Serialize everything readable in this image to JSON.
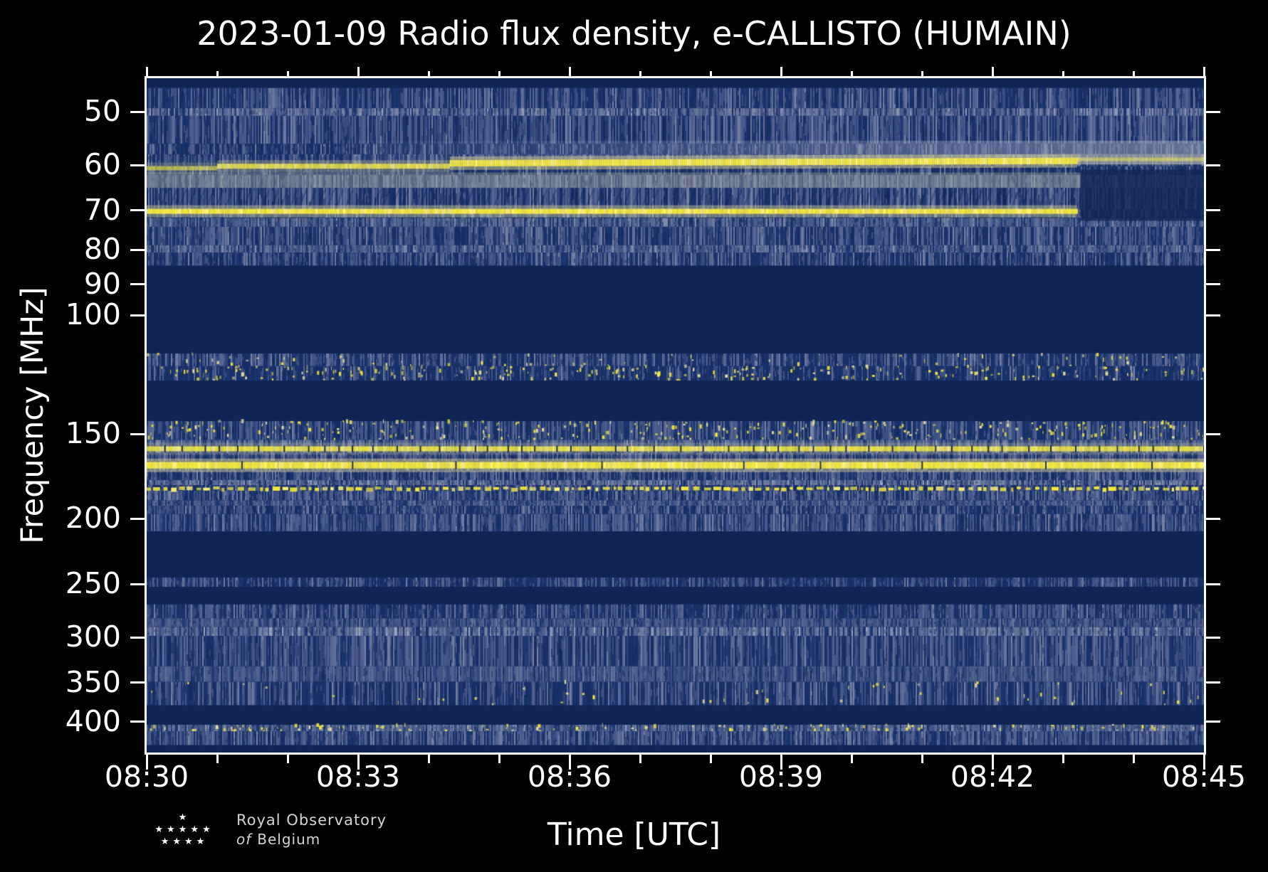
{
  "title": "2023-01-09 Radio flux density, e-CALLISTO (HUMAIN)",
  "x_axis": {
    "label": "Time [UTC]",
    "tick_labels": [
      "08:30",
      "08:33",
      "08:36",
      "08:39",
      "08:42",
      "08:45"
    ],
    "duration_min": 15,
    "major_step_min": 3,
    "minor_step_min": 1
  },
  "y_axis": {
    "label": "Frequency [MHz]",
    "scale": "log",
    "tick_labels": [
      50,
      60,
      70,
      80,
      90,
      100,
      150,
      200,
      250,
      300,
      350,
      400
    ]
  },
  "logo": {
    "org_line1": "Royal Observatory",
    "org_line2_italic": "of",
    "org_line2": "Belgium",
    "star_glyph": "★",
    "star_rows": [
      1,
      5,
      4
    ]
  },
  "chart_data": {
    "type": "heatmap",
    "subtype": "radio-spectrogram",
    "date": "2023-01-09",
    "instrument": "e-CALLISTO",
    "station": "HUMAIN",
    "time_range_utc": [
      "08:30",
      "08:45"
    ],
    "freq_range_mhz": [
      44.6,
      444
    ],
    "freq_axis": "log, low frequency at top",
    "palette": {
      "base": "#1e366f",
      "base_dark": "#13295e",
      "dark": "#112554",
      "darker": "#0d1f4a",
      "noise_light": "#5f6c9a",
      "noise_lighter": "#8a92af",
      "noise_dark": "#152c63",
      "grey": "#98a0b8",
      "grey_light": "#c6cad7",
      "yellow": "#f6e93c",
      "yellow_bright": "#fff478",
      "yellow_pale": "#e9e09a",
      "haze_grey": "#aab0c4",
      "haze_warm": "#cfc9a8"
    },
    "bands": [
      {
        "f1": 44.6,
        "f2": 46.1,
        "kind": "dark",
        "level": 1.0
      },
      {
        "f1": 46.1,
        "f2": 49.4,
        "kind": "noise",
        "level": 0.65
      },
      {
        "f1": 49.4,
        "f2": 50.7,
        "kind": "grey",
        "level": 0.8
      },
      {
        "f1": 50.7,
        "f2": 55.8,
        "kind": "noise",
        "level": 0.8
      },
      {
        "f1": 55.8,
        "f2": 57.8,
        "kind": "noise",
        "level": 0.55
      },
      {
        "f1": 57.8,
        "f2": 60.2,
        "kind": "noise",
        "level": 0.7
      },
      {
        "f1": 60.2,
        "f2": 62.0,
        "kind": "noise",
        "level": 0.5
      },
      {
        "f1": 62.0,
        "f2": 64.8,
        "kind": "grey",
        "level": 0.6
      },
      {
        "f1": 64.8,
        "f2": 69.8,
        "kind": "noise",
        "level": 0.75,
        "hatch": true
      },
      {
        "f1": 69.8,
        "f2": 71.8,
        "kind": "noise",
        "level": 0.5
      },
      {
        "f1": 71.8,
        "f2": 74.0,
        "kind": "grey",
        "level": 0.65
      },
      {
        "f1": 74.0,
        "f2": 78.8,
        "kind": "noise",
        "level": 0.75
      },
      {
        "f1": 78.8,
        "f2": 80.8,
        "kind": "grey",
        "level": 0.7
      },
      {
        "f1": 80.8,
        "f2": 84.5,
        "kind": "noise",
        "level": 0.6
      },
      {
        "f1": 84.5,
        "f2": 114.0,
        "kind": "dark",
        "level": 1.0
      },
      {
        "f1": 114.0,
        "f2": 119.0,
        "kind": "noise",
        "level": 0.6,
        "speckle": 0.15
      },
      {
        "f1": 119.0,
        "f2": 125.0,
        "kind": "noise",
        "level": 0.35,
        "speckle": 0.55
      },
      {
        "f1": 125.0,
        "f2": 143.5,
        "kind": "dark",
        "level": 1.0
      },
      {
        "f1": 143.5,
        "f2": 153.0,
        "kind": "noise",
        "level": 0.7,
        "speckle": 0.7
      },
      {
        "f1": 153.0,
        "f2": 160.0,
        "kind": "grey",
        "level": 0.7
      },
      {
        "f1": 160.0,
        "f2": 164.5,
        "kind": "noise",
        "level": 0.8
      },
      {
        "f1": 164.5,
        "f2": 170.0,
        "kind": "noise",
        "level": 0.6
      },
      {
        "f1": 170.0,
        "f2": 175.5,
        "kind": "noise",
        "level": 0.75
      },
      {
        "f1": 175.5,
        "f2": 178.5,
        "kind": "grey",
        "level": 0.85
      },
      {
        "f1": 178.5,
        "f2": 182.0,
        "kind": "noise",
        "level": 0.6
      },
      {
        "f1": 182.0,
        "f2": 188.0,
        "kind": "noise",
        "level": 0.8
      },
      {
        "f1": 188.0,
        "f2": 191.5,
        "kind": "grey",
        "level": 0.55
      },
      {
        "f1": 191.5,
        "f2": 197.0,
        "kind": "noise",
        "level": 0.7
      },
      {
        "f1": 197.0,
        "f2": 209.0,
        "kind": "noise",
        "level": 0.85
      },
      {
        "f1": 209.0,
        "f2": 244.5,
        "kind": "dark",
        "level": 1.0
      },
      {
        "f1": 244.5,
        "f2": 252.5,
        "kind": "noise",
        "level": 0.5
      },
      {
        "f1": 252.5,
        "f2": 268.0,
        "kind": "dark",
        "level": 1.0
      },
      {
        "f1": 268.0,
        "f2": 281.0,
        "kind": "noise",
        "level": 0.6
      },
      {
        "f1": 281.0,
        "f2": 289.5,
        "kind": "grey",
        "level": 0.5
      },
      {
        "f1": 289.5,
        "f2": 298.5,
        "kind": "grey",
        "level": 0.85
      },
      {
        "f1": 298.5,
        "f2": 331.0,
        "kind": "noise",
        "level": 0.75
      },
      {
        "f1": 331.0,
        "f2": 349.0,
        "kind": "grey",
        "level": 0.5
      },
      {
        "f1": 349.0,
        "f2": 378.0,
        "kind": "noise",
        "level": 0.6,
        "speckle": 0.12
      },
      {
        "f1": 378.0,
        "f2": 404.0,
        "kind": "dark",
        "level": 1.0
      },
      {
        "f1": 404.0,
        "f2": 413.0,
        "kind": "grey",
        "level": 0.75,
        "speckle": 0.3
      },
      {
        "f1": 413.0,
        "f2": 433.0,
        "kind": "noise",
        "level": 0.85
      },
      {
        "f1": 433.0,
        "f2": 444.0,
        "kind": "dark",
        "level": 0.85
      }
    ],
    "rfi_lines": [
      {
        "name": "callisto-60mhz-seg-a",
        "f": 60.6,
        "t1": 0.0,
        "t2": 1.0,
        "h": 6,
        "bright": 0.65,
        "halo": 0.2
      },
      {
        "name": "callisto-60mhz-seg-b",
        "f": 60.2,
        "t1": 1.0,
        "t2": 4.3,
        "h": 7,
        "bright": 0.85,
        "halo": 0.3
      },
      {
        "name": "callisto-60mhz-seg-c",
        "f": 59.6,
        "f_end": 59.1,
        "t1": 4.3,
        "t2": 13.2,
        "h": 9,
        "bright": 1.0,
        "halo": 0.45
      },
      {
        "name": "callisto-60mhz-seg-d",
        "f": 58.8,
        "t1": 13.2,
        "t2": 15.0,
        "h": 5,
        "bright": 0.55,
        "halo": 0.25
      },
      {
        "name": "rfi-71mhz",
        "f": 70.2,
        "t1": 0.0,
        "t2": 13.2,
        "h": 7,
        "bright": 1.0,
        "halo": 0.4
      },
      {
        "name": "rfi-158mhz",
        "f": 157.7,
        "t1": 0.0,
        "t2": 15.0,
        "h": 7,
        "bright": 0.92,
        "halo": 0.2,
        "black_tick_step": 27
      },
      {
        "name": "rfi-167mhz",
        "f": 166.8,
        "t1": 0.0,
        "t2": 15.0,
        "h": 9,
        "bright": 1.0,
        "halo": 0.45,
        "black_tick_step": 150
      },
      {
        "name": "rfi-181mhz-dotted",
        "f": 181.0,
        "t1": 0.0,
        "t2": 15.0,
        "h": 6,
        "bright": 0.9,
        "style": "dotted"
      }
    ],
    "features": [
      {
        "type": "haze",
        "name": "brightening-haze-above-60mhz",
        "f1": 55.2,
        "f2": 59.8,
        "t1": 3.0,
        "t2": 15.0,
        "color": "haze_grey",
        "alpha0": 0.05,
        "alpha": 0.5
      },
      {
        "type": "haze",
        "name": "warm-haze-below-60mhz",
        "f1": 61.5,
        "f2": 64.8,
        "t1": 0.0,
        "t2": 13.25,
        "color": "haze_warm",
        "alpha0": 0.3,
        "alpha": 0.3
      },
      {
        "type": "dark-rect",
        "name": "dropout-after-0843",
        "f1": 60.9,
        "f2": 72.5,
        "t1": 13.25,
        "t2": 15.0,
        "alpha": 0.8
      }
    ]
  }
}
